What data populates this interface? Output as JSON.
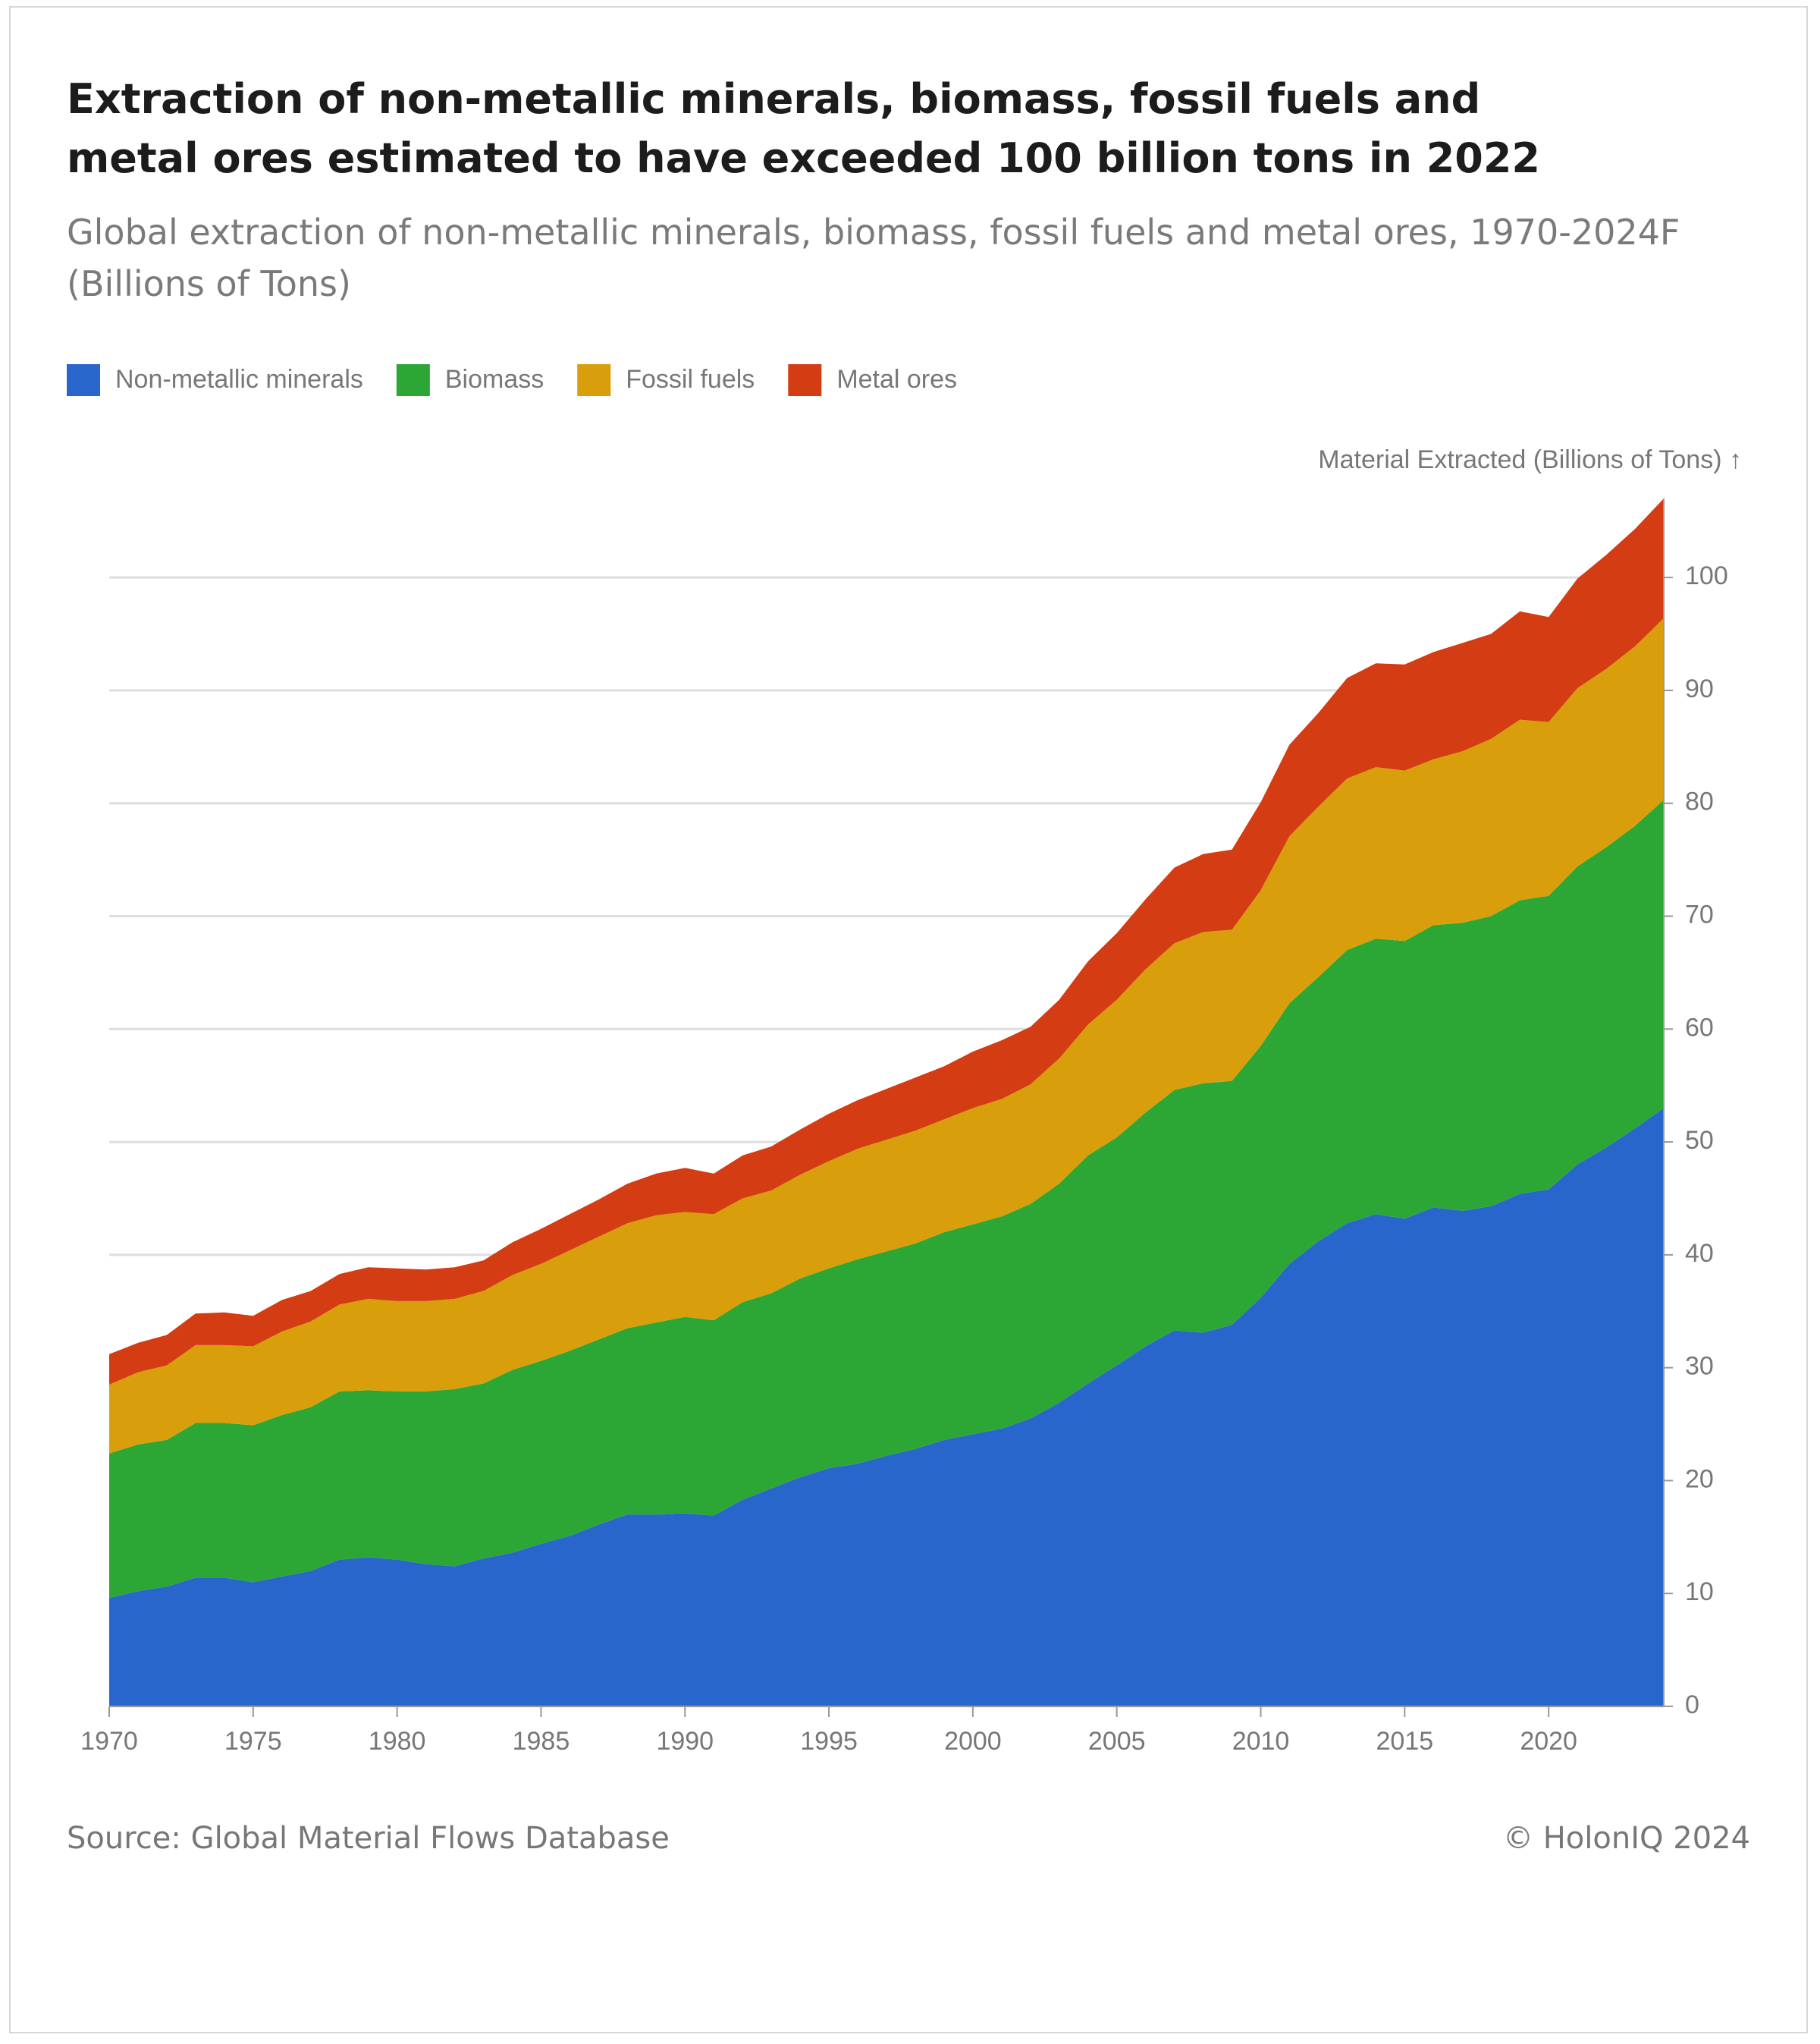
{
  "chart_data": {
    "type": "stacked-area",
    "title": "Extraction of non-metallic minerals, biomass, fossil fuels and metal ores estimated to have exceeded 100 billion tons in 2022",
    "subtitle": "Global extraction of non-metallic minerals, biomass, fossil fuels and metal ores, 1970-2024F (Billions of Tons)",
    "y_axis_label": "Material Extracted (Billions of Tons) ↑",
    "source": "Source: Global Material Flows Database",
    "credit": "© HolonIQ 2024",
    "x": [
      1970,
      1971,
      1972,
      1973,
      1974,
      1975,
      1976,
      1977,
      1978,
      1979,
      1980,
      1981,
      1982,
      1983,
      1984,
      1985,
      1986,
      1987,
      1988,
      1989,
      1990,
      1991,
      1992,
      1993,
      1994,
      1995,
      1996,
      1997,
      1998,
      1999,
      2000,
      2001,
      2002,
      2003,
      2004,
      2005,
      2006,
      2007,
      2008,
      2009,
      2010,
      2011,
      2012,
      2013,
      2014,
      2015,
      2016,
      2017,
      2018,
      2019,
      2020,
      2021,
      2022,
      2023,
      2024
    ],
    "series": [
      {
        "name": "Non-metallic minerals",
        "color": "#2966cc",
        "values": [
          9.6,
          10.2,
          10.6,
          11.4,
          11.4,
          11.0,
          11.5,
          12.0,
          13.0,
          13.2,
          13.0,
          12.6,
          12.4,
          13.1,
          13.6,
          14.4,
          15.1,
          16.1,
          17.0,
          17.0,
          17.1,
          16.9,
          18.3,
          19.3,
          20.3,
          21.1,
          21.5,
          22.2,
          22.8,
          23.6,
          24.1,
          24.6,
          25.5,
          26.9,
          28.6,
          30.2,
          31.9,
          33.3,
          33.1,
          33.8,
          36.2,
          39.2,
          41.2,
          42.8,
          43.6,
          43.2,
          44.2,
          43.9,
          44.3,
          45.4,
          45.8,
          48.0,
          49.5,
          51.2,
          53.0
        ]
      },
      {
        "name": "Biomass",
        "color": "#2ca635",
        "values": [
          12.8,
          13.0,
          13.0,
          13.7,
          13.7,
          13.9,
          14.3,
          14.5,
          14.9,
          14.8,
          14.9,
          15.3,
          15.7,
          15.5,
          16.2,
          16.2,
          16.4,
          16.4,
          16.5,
          17.0,
          17.4,
          17.3,
          17.5,
          17.3,
          17.6,
          17.7,
          18.1,
          18.1,
          18.2,
          18.4,
          18.6,
          18.8,
          19.0,
          19.4,
          20.2,
          20.2,
          20.7,
          21.3,
          22.1,
          21.6,
          22.3,
          23.1,
          23.4,
          24.2,
          24.4,
          24.6,
          25.0,
          25.5,
          25.7,
          26.0,
          26.0,
          26.4,
          26.6,
          26.8,
          27.3
        ]
      },
      {
        "name": "Fossil fuels",
        "color": "#d89e0c",
        "values": [
          6.1,
          6.4,
          6.6,
          6.9,
          6.9,
          7.0,
          7.4,
          7.6,
          7.7,
          8.1,
          8.0,
          8.0,
          8.0,
          8.2,
          8.4,
          8.6,
          8.9,
          9.1,
          9.3,
          9.5,
          9.3,
          9.4,
          9.2,
          9.1,
          9.2,
          9.5,
          9.8,
          9.9,
          10.0,
          10.0,
          10.3,
          10.4,
          10.6,
          11.1,
          11.6,
          12.2,
          12.7,
          13.0,
          13.4,
          13.4,
          13.8,
          14.8,
          15.1,
          15.2,
          15.2,
          15.1,
          14.7,
          15.2,
          15.7,
          16.0,
          15.4,
          15.8,
          15.8,
          15.9,
          16.1
        ]
      },
      {
        "name": "Metal ores",
        "color": "#d43c14",
        "values": [
          2.7,
          2.6,
          2.7,
          2.8,
          2.9,
          2.7,
          2.8,
          2.7,
          2.7,
          2.8,
          2.9,
          2.8,
          2.8,
          2.7,
          2.9,
          3.1,
          3.2,
          3.3,
          3.5,
          3.7,
          3.9,
          3.6,
          3.8,
          3.9,
          4.0,
          4.2,
          4.3,
          4.5,
          4.7,
          4.7,
          5.0,
          5.2,
          5.1,
          5.2,
          5.6,
          5.9,
          6.2,
          6.7,
          6.9,
          7.1,
          7.8,
          8.1,
          8.3,
          8.9,
          9.2,
          9.4,
          9.5,
          9.6,
          9.3,
          9.6,
          9.3,
          9.7,
          10.1,
          10.4,
          10.6
        ]
      }
    ],
    "xlim": [
      1970,
      2024
    ],
    "xticks": [
      1970,
      1975,
      1980,
      1985,
      1990,
      1995,
      2000,
      2005,
      2010,
      2015,
      2020
    ],
    "ylim": [
      0,
      107
    ],
    "yticks": [
      0,
      10,
      20,
      30,
      40,
      50,
      60,
      70,
      80,
      90,
      100
    ],
    "grid": true,
    "stacked": true,
    "y_axis_side": "right",
    "legend": "top-left"
  }
}
